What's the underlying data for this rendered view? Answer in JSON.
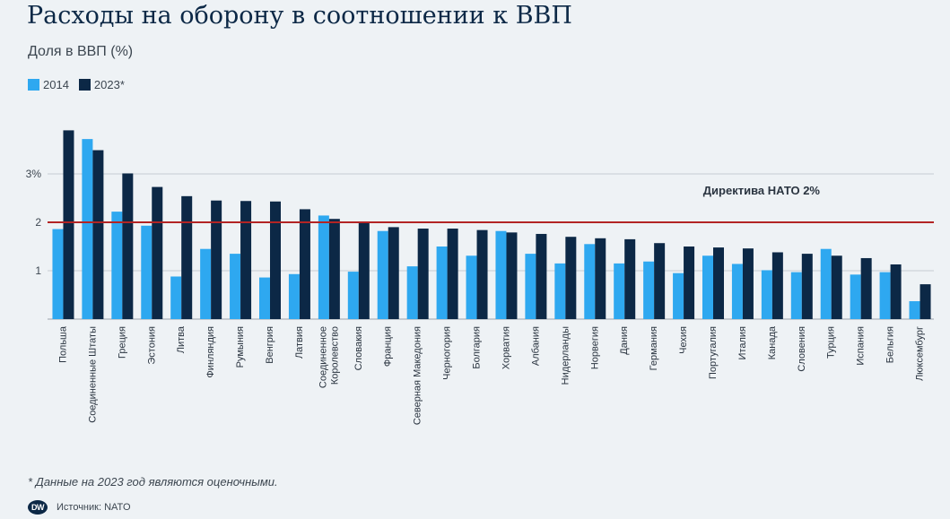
{
  "title": "Расходы на оборону в соотношении к ВВП",
  "subtitle": "Доля в ВВП (%)",
  "legend": [
    {
      "label": "2014",
      "color": "#2ea8f0"
    },
    {
      "label": "2023*",
      "color": "#0c2846"
    }
  ],
  "footnote": "* Данные на 2023 год являются оценочными.",
  "source": "Источник: NATO",
  "logo_text": "DW",
  "chart_data": {
    "type": "bar",
    "ylim": [
      0,
      4
    ],
    "y_ticks": [
      {
        "value": 1,
        "label": "1"
      },
      {
        "value": 2,
        "label": "2"
      },
      {
        "value": 3,
        "label": "3%"
      }
    ],
    "grid": true,
    "reference_line": {
      "value": 2,
      "label": "Директива НАТО 2%",
      "color": "#b32424"
    },
    "categories": [
      [
        "Польша"
      ],
      [
        "Соединенные Штаты"
      ],
      [
        "Греция"
      ],
      [
        "Эстония"
      ],
      [
        "Литва"
      ],
      [
        "Финляндия"
      ],
      [
        "Румыния"
      ],
      [
        "Венгрия"
      ],
      [
        "Латвия"
      ],
      [
        "Соединенное",
        "Королевство"
      ],
      [
        "Словакия"
      ],
      [
        "Франция"
      ],
      [
        "Северная Македония"
      ],
      [
        "Черногория"
      ],
      [
        "Болгария"
      ],
      [
        "Хорватия"
      ],
      [
        "Албания"
      ],
      [
        "Нидерланды"
      ],
      [
        "Норвегия"
      ],
      [
        "Дания"
      ],
      [
        "Германия"
      ],
      [
        "Чехия"
      ],
      [
        "Португалия"
      ],
      [
        "Италия"
      ],
      [
        "Канада"
      ],
      [
        "Словения"
      ],
      [
        "Турция"
      ],
      [
        "Испания"
      ],
      [
        "Бельгия"
      ],
      [
        "Люксембург"
      ]
    ],
    "series": [
      {
        "name": "2014",
        "color": "#2ea8f0",
        "values": [
          1.86,
          3.72,
          2.22,
          1.93,
          0.88,
          1.45,
          1.35,
          0.86,
          0.93,
          2.14,
          0.98,
          1.82,
          1.09,
          1.5,
          1.31,
          1.82,
          1.35,
          1.15,
          1.55,
          1.15,
          1.19,
          0.95,
          1.31,
          1.14,
          1.01,
          0.97,
          1.45,
          0.92,
          0.97,
          0.37
        ]
      },
      {
        "name": "2023*",
        "color": "#0c2846",
        "values": [
          3.9,
          3.49,
          3.01,
          2.73,
          2.54,
          2.45,
          2.44,
          2.43,
          2.27,
          2.07,
          2.0,
          1.9,
          1.87,
          1.87,
          1.84,
          1.79,
          1.76,
          1.7,
          1.67,
          1.65,
          1.57,
          1.5,
          1.48,
          1.46,
          1.38,
          1.35,
          1.31,
          1.26,
          1.13,
          0.72
        ]
      }
    ]
  }
}
